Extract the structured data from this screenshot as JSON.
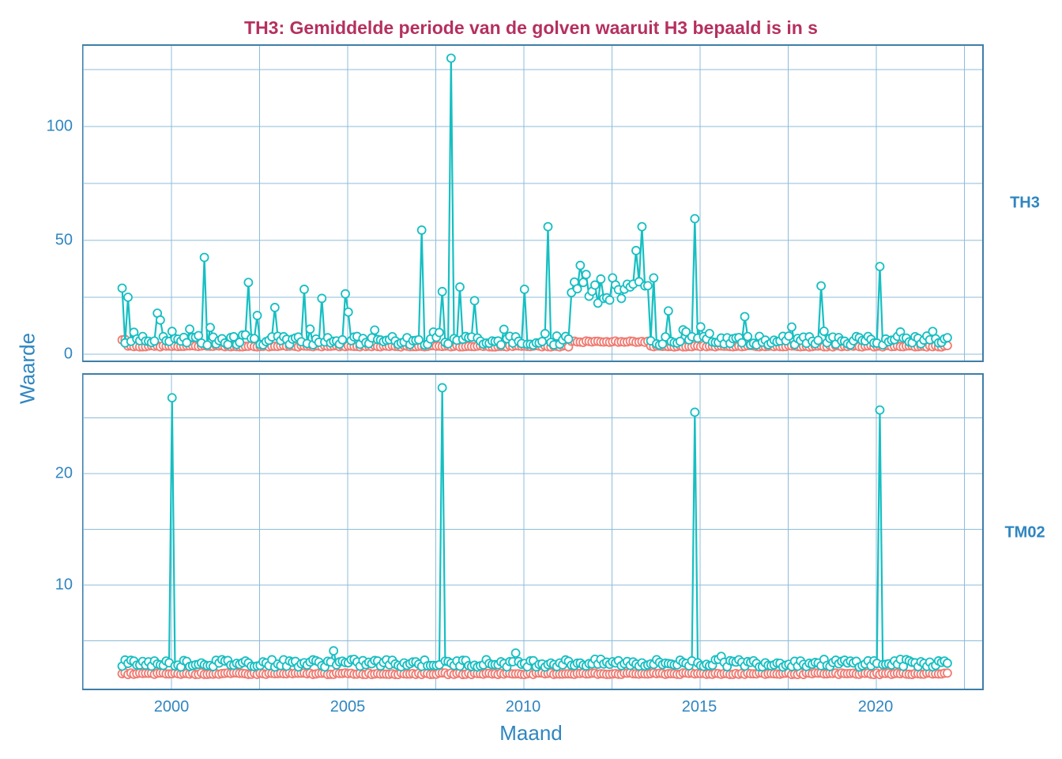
{
  "chart_data": {
    "type": "line",
    "title": "TH3: Gemiddelde periode van de golven waaruit H3 bepaald is in s",
    "xlabel": "Maand",
    "ylabel": "Waarde",
    "x_ticks": [
      "2000",
      "2005",
      "2010",
      "2015",
      "2020"
    ],
    "x_range": [
      1997.3,
      2023.0
    ],
    "x_start": 1998.6,
    "x_step_months": 1,
    "grid": true,
    "legend": "none (two colored series: teal and salmon)",
    "series_colors": {
      "teal": "#16bfc2",
      "salmon": "#f07b72"
    },
    "panels": [
      {
        "strip_label": "TH3",
        "y_ticks": [
          "0",
          "50",
          "100"
        ],
        "ylim": [
          -2,
          137
        ],
        "series": [
          {
            "name": "teal",
            "peaks": [
              {
                "x": 1998.6,
                "y": 29
              },
              {
                "x": 1998.75,
                "y": 25
              },
              {
                "x": 1999.6,
                "y": 18
              },
              {
                "x": 1999.7,
                "y": 15
              },
              {
                "x": 2000.0,
                "y": 10
              },
              {
                "x": 2000.5,
                "y": 11
              },
              {
                "x": 2000.9,
                "y": 42.5
              },
              {
                "x": 2002.2,
                "y": 31.5
              },
              {
                "x": 2002.4,
                "y": 17
              },
              {
                "x": 2002.9,
                "y": 20.5
              },
              {
                "x": 2003.8,
                "y": 28.5
              },
              {
                "x": 2004.3,
                "y": 24.5
              },
              {
                "x": 2004.9,
                "y": 26.5
              },
              {
                "x": 2005.0,
                "y": 18.5
              },
              {
                "x": 2007.1,
                "y": 54.5
              },
              {
                "x": 2007.7,
                "y": 27.5
              },
              {
                "x": 2007.95,
                "y": 130
              },
              {
                "x": 2008.2,
                "y": 29.5
              },
              {
                "x": 2008.6,
                "y": 23.5
              },
              {
                "x": 2010.0,
                "y": 28.5
              },
              {
                "x": 2010.7,
                "y": 56
              },
              {
                "x": 2011.6,
                "y": 39
              },
              {
                "x": 2011.8,
                "y": 35
              },
              {
                "x": 2012.2,
                "y": 33
              },
              {
                "x": 2012.5,
                "y": 33.5
              },
              {
                "x": 2013.2,
                "y": 45.5
              },
              {
                "x": 2013.35,
                "y": 56
              },
              {
                "x": 2013.7,
                "y": 33.5
              },
              {
                "x": 2014.1,
                "y": 19
              },
              {
                "x": 2014.85,
                "y": 59.5
              },
              {
                "x": 2015.0,
                "y": 12
              },
              {
                "x": 2016.3,
                "y": 16.5
              },
              {
                "x": 2018.4,
                "y": 30
              },
              {
                "x": 2020.1,
                "y": 38.5
              }
            ],
            "baseline": 6
          },
          {
            "name": "salmon",
            "segments": [
              {
                "from": 1998.6,
                "to": 1998.7,
                "value": 6.5
              },
              {
                "from": 1998.7,
                "to": 2011.3,
                "value": 3.5
              },
              {
                "from": 2011.3,
                "to": 2013.6,
                "value": 5.5
              },
              {
                "from": 2013.6,
                "to": 2022.0,
                "value": 3.5
              }
            ]
          }
        ]
      },
      {
        "strip_label": "TM02",
        "y_ticks": [
          "10",
          "20"
        ],
        "ylim": [
          0.6,
          28.4
        ],
        "series": [
          {
            "name": "teal",
            "peaks": [
              {
                "x": 2000.0,
                "y": 26.8
              },
              {
                "x": 2007.7,
                "y": 27.7
              },
              {
                "x": 2014.85,
                "y": 25.5
              },
              {
                "x": 2020.1,
                "y": 25.7
              },
              {
                "x": 2004.6,
                "y": 4.1
              },
              {
                "x": 2009.8,
                "y": 3.9
              },
              {
                "x": 2015.6,
                "y": 3.6
              }
            ],
            "baseline": 3.0
          },
          {
            "name": "salmon",
            "segments": [
              {
                "from": 1998.6,
                "to": 2022.0,
                "value": 2.05
              }
            ]
          }
        ]
      }
    ]
  },
  "title": "TH3: Gemiddelde periode van de golven waaruit H3 bepaald is in s",
  "axes": {
    "xlabel": "Maand",
    "ylabel": "Waarde",
    "x_ticks": [
      "2000",
      "2005",
      "2010",
      "2015",
      "2020"
    ],
    "panel1_y_ticks": [
      "0",
      "50",
      "100"
    ],
    "panel2_y_ticks": [
      "10",
      "20"
    ]
  },
  "strips": {
    "top": "TH3",
    "bottom": "TM02"
  }
}
